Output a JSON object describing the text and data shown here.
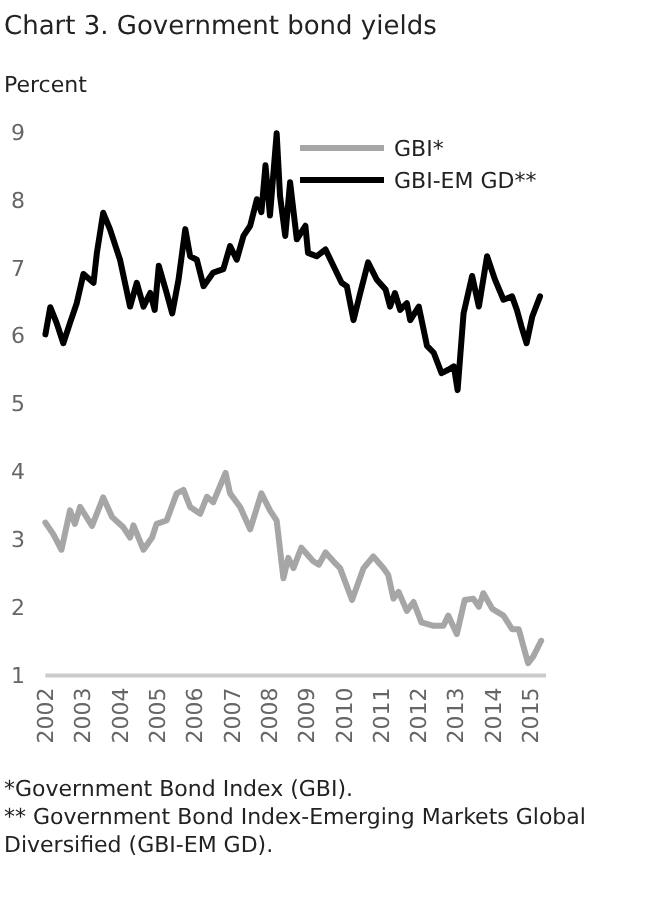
{
  "chart_data": {
    "type": "line",
    "title": "Chart 3. Government bond yields",
    "ylabel": "Percent",
    "xlim": [
      2002,
      2015.42
    ],
    "xticks": [
      2002,
      2003,
      2004,
      2005,
      2006,
      2007,
      2008,
      2009,
      2010,
      2011,
      2012,
      2013,
      2014,
      2015
    ],
    "ylim": [
      1,
      9
    ],
    "yticks": [
      1,
      2,
      3,
      4,
      5,
      6,
      7,
      8,
      9
    ],
    "grid": false,
    "legend": "top right",
    "marker": "none",
    "line_style": "solid",
    "series": [
      {
        "name": "GBI*",
        "color": "#a6a6a6",
        "x": [
          2002.0,
          2002.21,
          2002.43,
          2002.66,
          2002.79,
          2002.93,
          2003.25,
          2003.55,
          2003.79,
          2004.09,
          2004.27,
          2004.36,
          2004.63,
          2004.86,
          2004.98,
          2005.25,
          2005.52,
          2005.7,
          2005.88,
          2006.15,
          2006.33,
          2006.5,
          2006.83,
          2006.95,
          2007.22,
          2007.49,
          2007.79,
          2008.02,
          2008.2,
          2008.38,
          2008.51,
          2008.65,
          2008.86,
          2009.18,
          2009.33,
          2009.51,
          2009.72,
          2009.9,
          2010.22,
          2010.53,
          2010.79,
          2011.06,
          2011.19,
          2011.33,
          2011.47,
          2011.69,
          2011.87,
          2012.08,
          2012.41,
          2012.67,
          2012.8,
          2013.03,
          2013.24,
          2013.47,
          2013.62,
          2013.74,
          2013.98,
          2014.28,
          2014.51,
          2014.69,
          2014.94,
          2015.08,
          2015.29
        ],
        "values": [
          3.25,
          3.08,
          2.85,
          3.43,
          3.23,
          3.48,
          3.2,
          3.62,
          3.33,
          3.18,
          3.03,
          3.21,
          2.85,
          3.03,
          3.23,
          3.28,
          3.68,
          3.73,
          3.48,
          3.38,
          3.63,
          3.55,
          3.98,
          3.68,
          3.48,
          3.15,
          3.68,
          3.43,
          3.28,
          2.43,
          2.73,
          2.58,
          2.88,
          2.68,
          2.63,
          2.81,
          2.68,
          2.58,
          2.11,
          2.58,
          2.75,
          2.58,
          2.48,
          2.13,
          2.23,
          1.95,
          2.08,
          1.78,
          1.73,
          1.73,
          1.88,
          1.61,
          2.11,
          2.13,
          2.01,
          2.21,
          1.98,
          1.88,
          1.68,
          1.68,
          1.18,
          1.28,
          1.51
        ]
      },
      {
        "name": "GBI-EM GD**",
        "color": "#000000",
        "x": [
          2002.0,
          2002.13,
          2002.3,
          2002.48,
          2002.66,
          2002.84,
          2003.02,
          2003.29,
          2003.38,
          2003.55,
          2003.73,
          2004.0,
          2004.27,
          2004.45,
          2004.63,
          2004.81,
          2004.93,
          2005.04,
          2005.25,
          2005.4,
          2005.57,
          2005.75,
          2005.88,
          2006.06,
          2006.24,
          2006.5,
          2006.77,
          2006.95,
          2007.13,
          2007.31,
          2007.49,
          2007.67,
          2007.79,
          2007.9,
          2008.02,
          2008.2,
          2008.29,
          2008.43,
          2008.56,
          2008.74,
          2008.97,
          2009.04,
          2009.27,
          2009.51,
          2009.72,
          2009.94,
          2010.08,
          2010.26,
          2010.44,
          2010.65,
          2010.88,
          2011.12,
          2011.24,
          2011.37,
          2011.51,
          2011.69,
          2011.78,
          2012.01,
          2012.23,
          2012.41,
          2012.62,
          2012.8,
          2012.95,
          2013.05,
          2013.21,
          2013.44,
          2013.62,
          2013.84,
          2014.05,
          2014.28,
          2014.51,
          2014.64,
          2014.76,
          2014.9,
          2015.05,
          2015.26
        ],
        "values": [
          6.02,
          6.42,
          6.19,
          5.89,
          6.19,
          6.48,
          6.91,
          6.78,
          7.22,
          7.81,
          7.57,
          7.12,
          6.43,
          6.78,
          6.43,
          6.63,
          6.38,
          7.03,
          6.63,
          6.33,
          6.83,
          7.57,
          7.17,
          7.12,
          6.73,
          6.93,
          6.98,
          7.32,
          7.12,
          7.47,
          7.62,
          8.01,
          7.82,
          8.51,
          7.77,
          8.98,
          8.06,
          7.47,
          8.26,
          7.42,
          7.62,
          7.22,
          7.17,
          7.27,
          7.03,
          6.78,
          6.73,
          6.23,
          6.63,
          7.08,
          6.83,
          6.68,
          6.43,
          6.63,
          6.38,
          6.48,
          6.23,
          6.43,
          5.85,
          5.75,
          5.45,
          5.5,
          5.55,
          5.2,
          6.33,
          6.88,
          6.43,
          7.17,
          6.83,
          6.53,
          6.58,
          6.38,
          6.14,
          5.89,
          6.28,
          6.58
        ]
      }
    ],
    "annotations": [
      "*Government Bond Index (GBI).",
      "** Government Bond Index-Emerging Markets Global Diversified (GBI-EM GD)."
    ]
  }
}
